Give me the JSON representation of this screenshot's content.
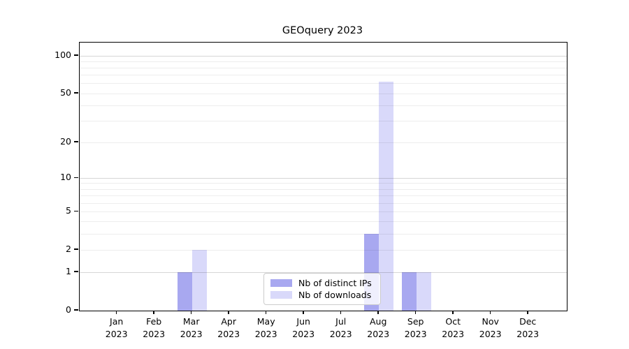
{
  "title": "GEOquery 2023",
  "chart_data": {
    "type": "bar",
    "title": "GEOquery 2023",
    "year": "2023",
    "categories": [
      "Jan",
      "Feb",
      "Mar",
      "Apr",
      "May",
      "Jun",
      "Jul",
      "Aug",
      "Sep",
      "Oct",
      "Nov",
      "Dec"
    ],
    "series": [
      {
        "name": "Nb of distinct IPs",
        "color": "#a8a8f0",
        "values": [
          0,
          0,
          1,
          0,
          0,
          0,
          0,
          3,
          1,
          0,
          0,
          0
        ]
      },
      {
        "name": "Nb of downloads",
        "color": "#d9d9fa",
        "values": [
          0,
          0,
          2,
          0,
          0,
          0,
          0,
          62,
          1,
          0,
          0,
          0
        ]
      }
    ],
    "y_axis": {
      "scale": "log1p",
      "ticks": [
        0,
        1,
        2,
        5,
        10,
        20,
        50,
        100
      ],
      "minor_gridlines": [
        2,
        3,
        4,
        5,
        6,
        7,
        8,
        9,
        20,
        30,
        40,
        50,
        60,
        70,
        80,
        90
      ],
      "major_gridlines": [
        1,
        10,
        100
      ],
      "ylim": [
        0,
        110
      ]
    },
    "x_axis": {
      "label_line_2": "2023"
    },
    "legend": {
      "position": "bottom-center",
      "frame": true
    },
    "grid": true,
    "grid_over_bars": true
  }
}
